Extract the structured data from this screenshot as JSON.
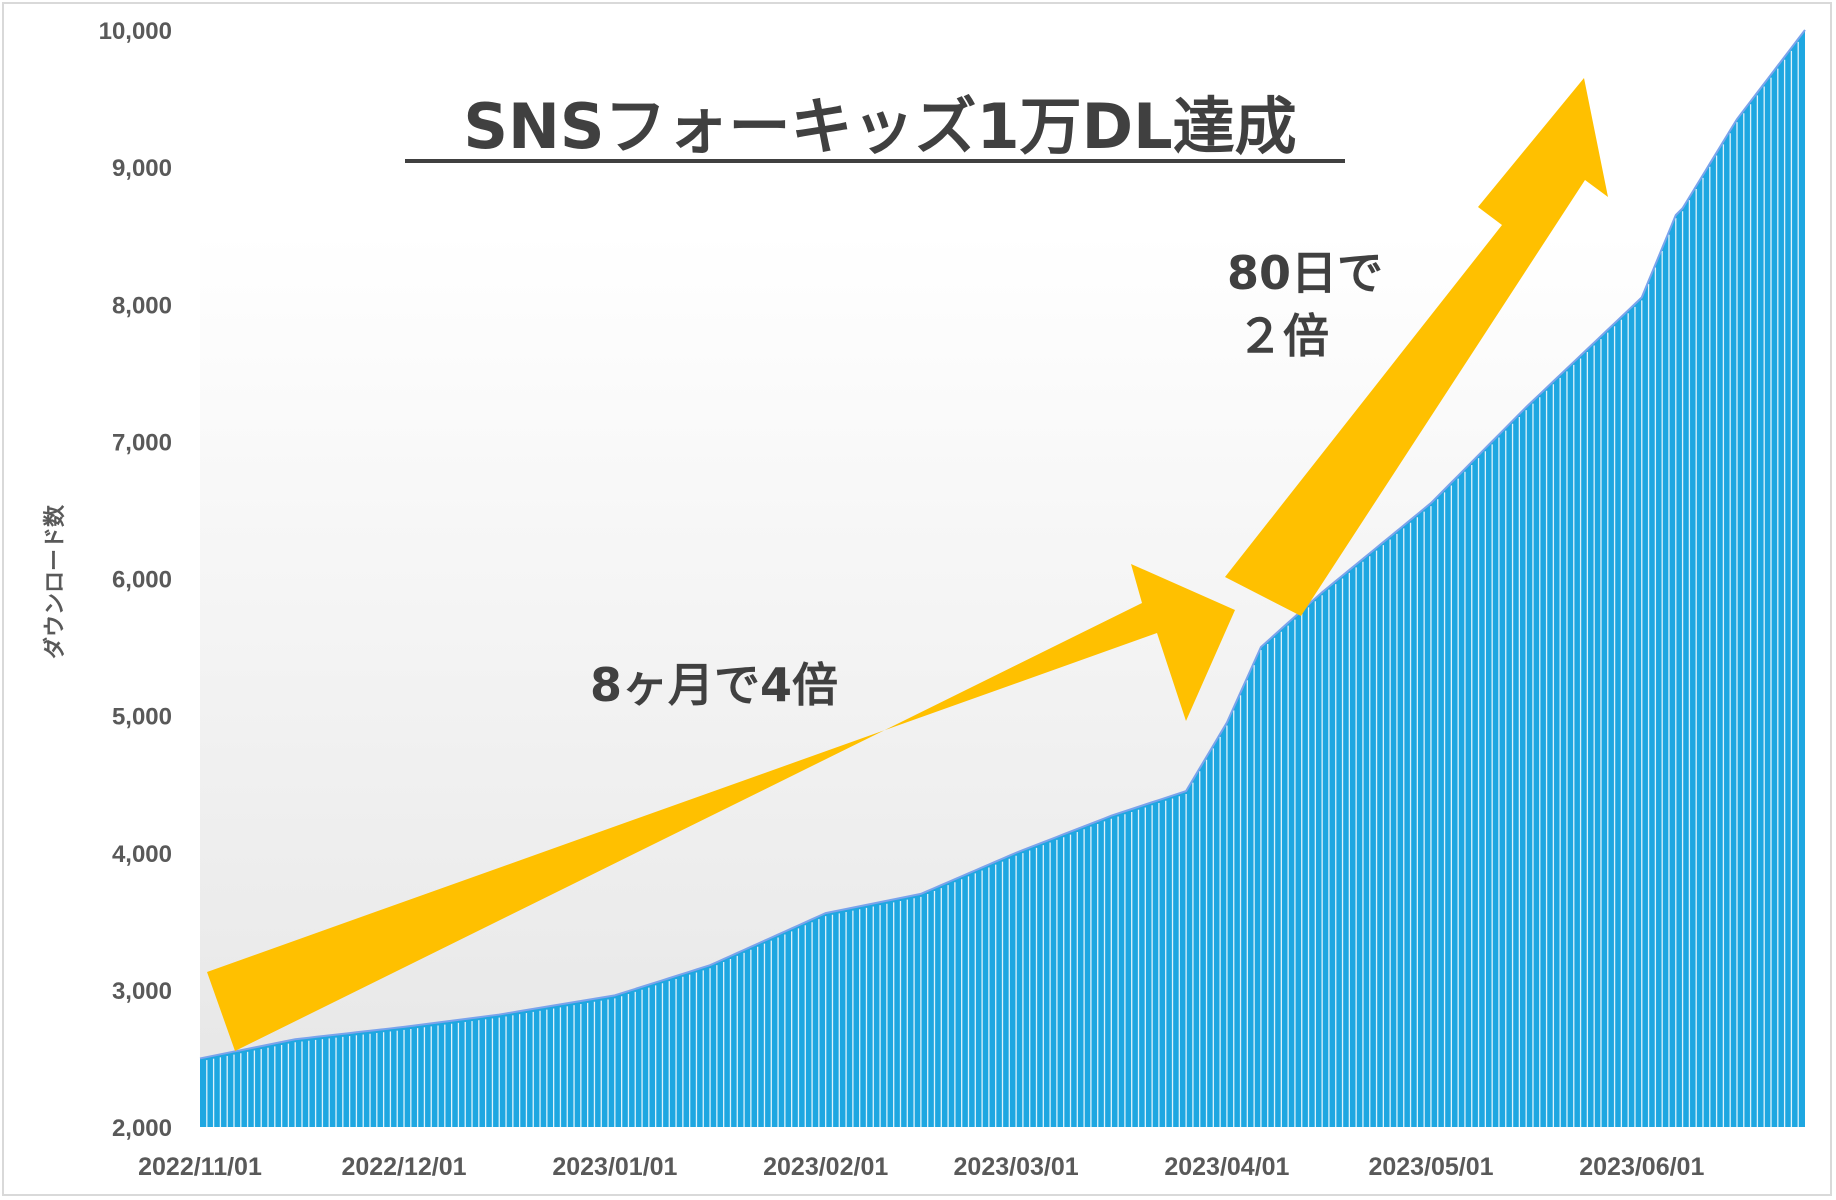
{
  "chart_data": {
    "type": "area",
    "title": "SNSフォーキッズ1万DL達成",
    "ylabel": "ダウンロード数",
    "xlabel": "",
    "ylim": [
      2000,
      10000
    ],
    "yticks": [
      "2,000",
      "3,000",
      "4,000",
      "5,000",
      "6,000",
      "7,000",
      "8,000",
      "9,000",
      "10,000"
    ],
    "xticks": [
      "2022/11/01",
      "2022/12/01",
      "2023/01/01",
      "2023/02/01",
      "2023/03/01",
      "2023/04/01",
      "2023/05/01",
      "2023/06/01"
    ],
    "grid": false,
    "fill_color": "#1ea7e1",
    "stripe_color": "#ffffff",
    "series": [
      {
        "x": [
          "2022-11-01",
          "2022-11-15",
          "2022-12-01",
          "2022-12-15",
          "2023-01-01",
          "2023-01-15",
          "2023-02-01",
          "2023-02-15",
          "2023-03-01",
          "2023-03-15",
          "2023-03-26",
          "2023-04-01",
          "2023-04-06",
          "2023-04-15",
          "2023-05-01",
          "2023-05-15",
          "2023-06-01",
          "2023-06-06",
          "2023-06-07",
          "2023-06-15",
          "2023-06-25"
        ],
        "values": [
          2500,
          2640,
          2730,
          2820,
          2960,
          3180,
          3560,
          3700,
          4000,
          4270,
          4450,
          4950,
          5500,
          5900,
          6550,
          7250,
          8050,
          8650,
          8700,
          9350,
          10000
        ]
      }
    ],
    "annotations": [
      {
        "text": "8ヶ月で4倍",
        "color": "#ffc000"
      },
      {
        "line1": "80日で",
        "line2": "２倍",
        "color": "#ffc000"
      }
    ]
  }
}
